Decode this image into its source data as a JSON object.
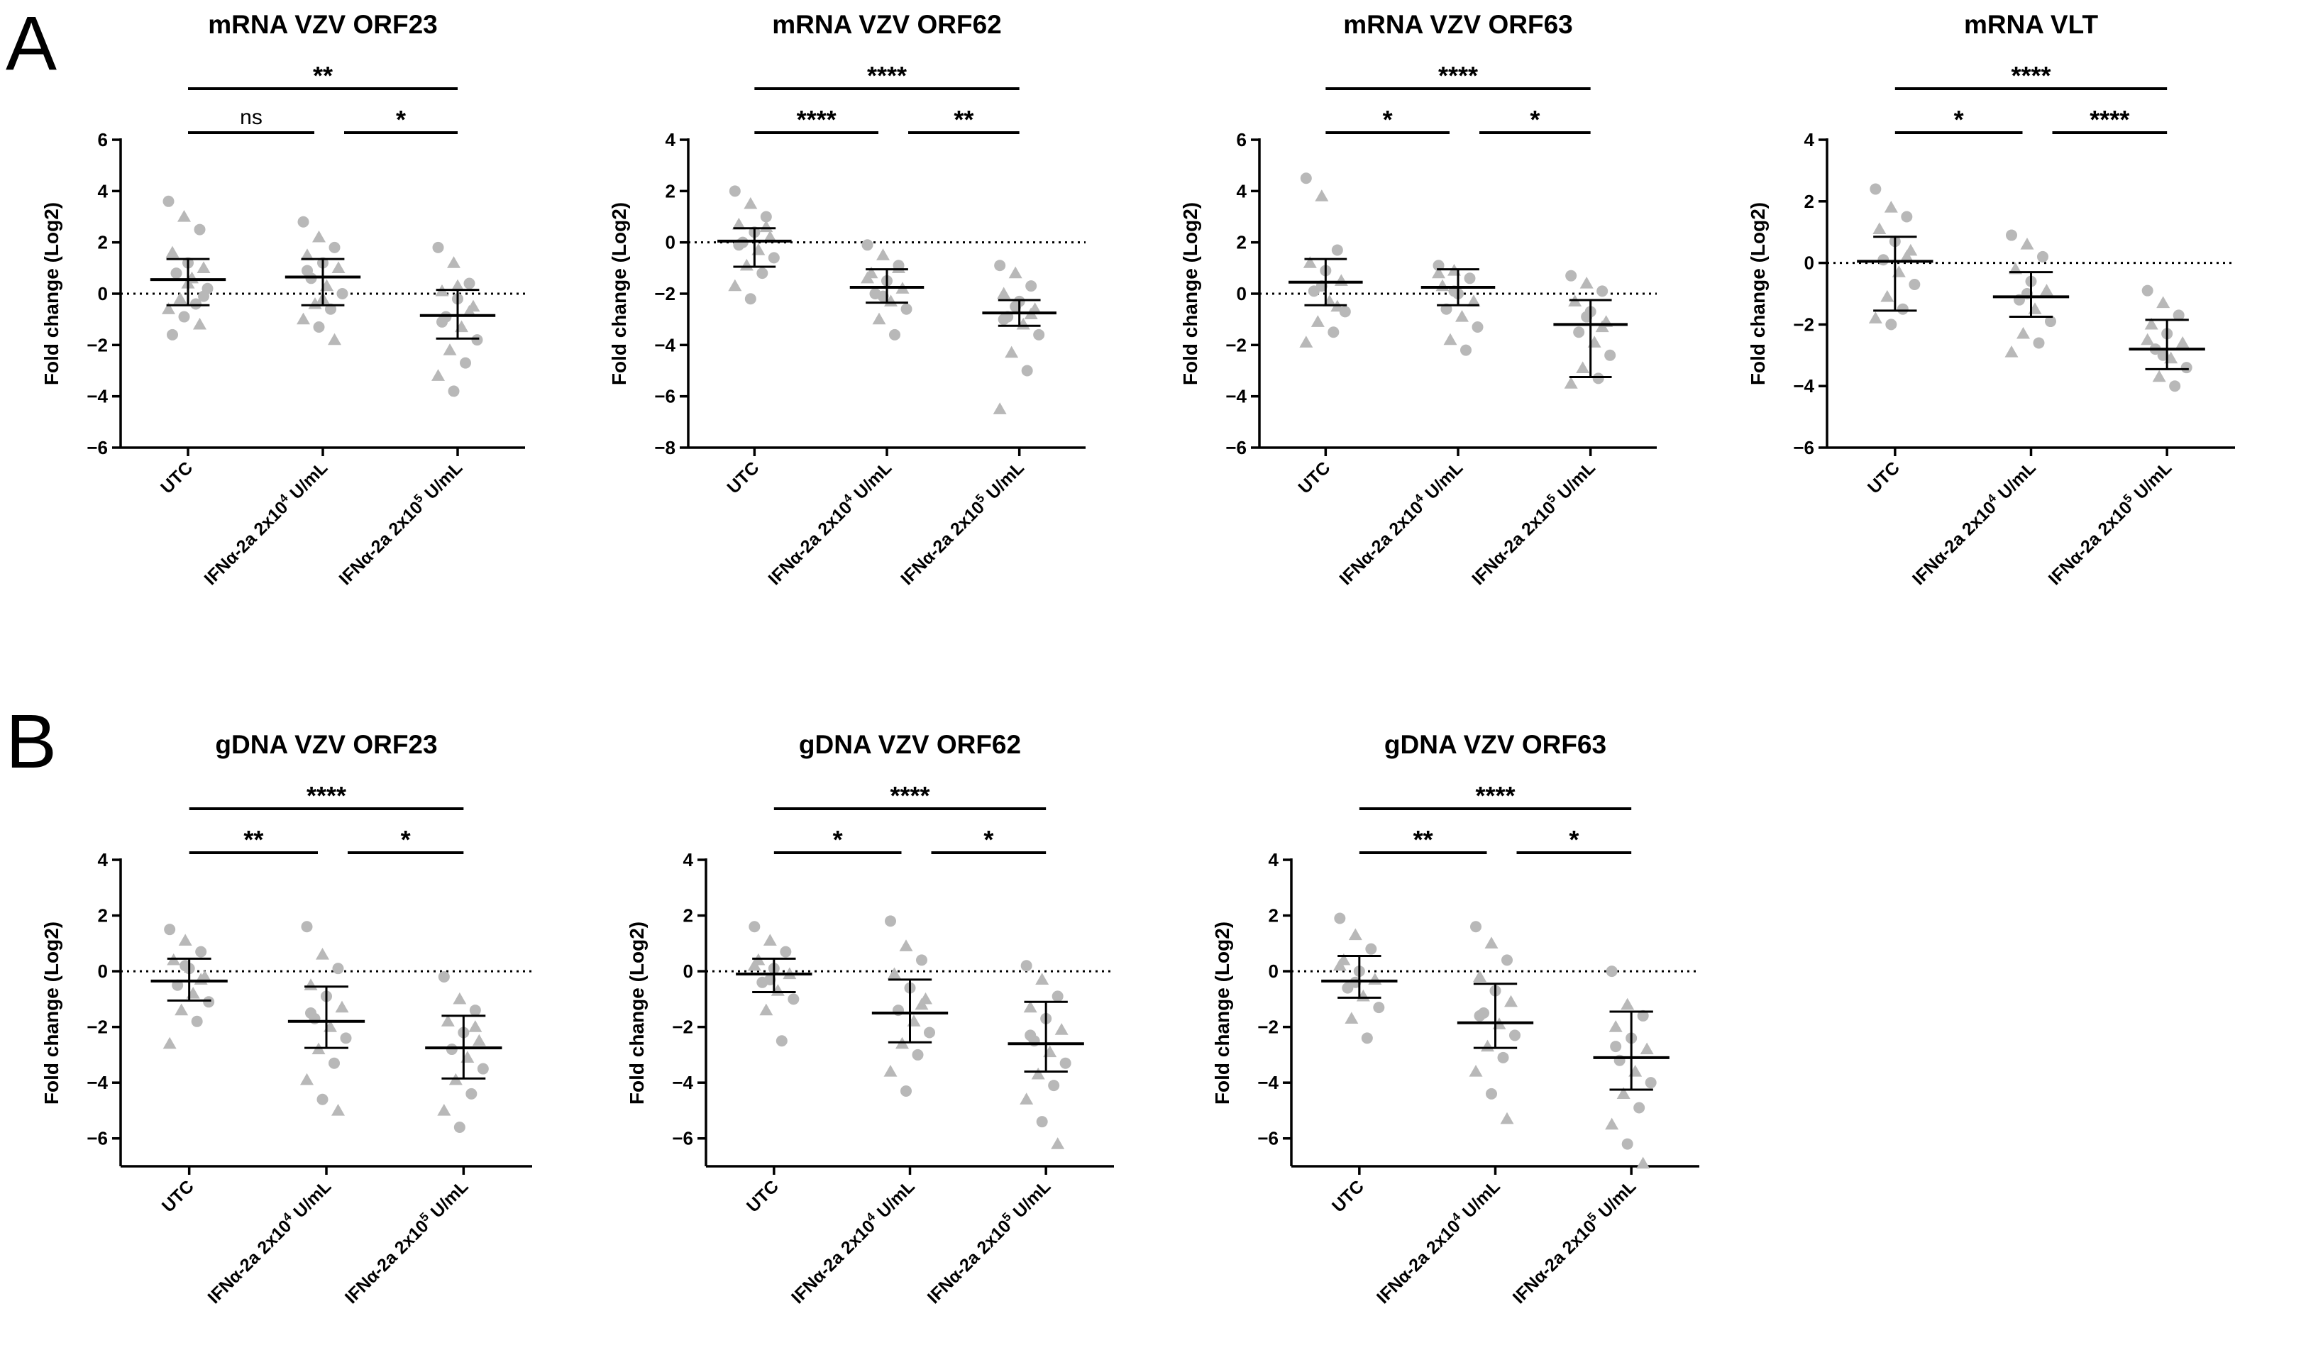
{
  "panels": [
    {
      "letter": "A"
    },
    {
      "letter": "B"
    }
  ],
  "category_parts": {
    "ifn_prefix": "IFNα-2a 2x10",
    "unit_suffix": " U/mL",
    "exp_low": "4",
    "exp_high": "5"
  },
  "chart_data": [
    {
      "type": "scatter",
      "title": "mRNA VZV ORF23",
      "ylabel": "Fold change (Log2)",
      "ylim": [
        -6,
        6
      ],
      "yticks": [
        -6,
        -4,
        -2,
        0,
        2,
        4,
        6
      ],
      "categories": [
        "UTC",
        "IFNα-2a 2x10^4 U/mL",
        "IFNα-2a 2x10^5 U/mL"
      ],
      "mean": [
        0.55,
        0.65,
        -0.85
      ],
      "sd_low": [
        -0.45,
        -0.45,
        -1.75
      ],
      "sd_high": [
        1.35,
        1.35,
        0.15
      ],
      "points": [
        [
          3.6,
          3.0,
          2.5,
          1.6,
          1.2,
          1.0,
          0.8,
          0.6,
          0.2,
          -0.2,
          -0.4,
          -0.6,
          -0.9,
          -1.2,
          -1.6,
          0.4,
          -0.1
        ],
        [
          2.8,
          2.2,
          1.8,
          1.5,
          1.2,
          1.0,
          0.6,
          0.3,
          0.0,
          -0.4,
          -0.6,
          -1.0,
          -1.3,
          -1.8,
          0.9,
          -0.2
        ],
        [
          1.8,
          1.2,
          0.4,
          0.1,
          -0.2,
          -0.5,
          -0.9,
          -1.3,
          -1.8,
          -2.2,
          -2.7,
          -3.2,
          -3.8,
          -0.7,
          -1.1,
          0.3
        ]
      ],
      "sig": [
        {
          "from": 0,
          "to": 2,
          "label": "**",
          "level": 2
        },
        {
          "from": 0,
          "to": 1,
          "label": "ns",
          "level": 1
        },
        {
          "from": 1,
          "to": 2,
          "label": "*",
          "level": 1
        }
      ]
    },
    {
      "type": "scatter",
      "title": "mRNA VZV ORF62",
      "ylabel": "Fold change (Log2)",
      "ylim": [
        -8,
        4
      ],
      "yticks": [
        -8,
        -6,
        -4,
        -2,
        0,
        2,
        4
      ],
      "categories": [
        "UTC",
        "IFNα-2a 2x10^4 U/mL",
        "IFNα-2a 2x10^5 U/mL"
      ],
      "mean": [
        0.05,
        -1.75,
        -2.75
      ],
      "sd_low": [
        -0.95,
        -2.35,
        -3.25
      ],
      "sd_high": [
        0.55,
        -1.05,
        -2.25
      ],
      "points": [
        [
          2.0,
          1.5,
          1.0,
          0.7,
          0.4,
          0.2,
          0.0,
          -0.3,
          -0.6,
          -0.9,
          -1.2,
          -1.7,
          -2.2,
          0.6,
          -0.1
        ],
        [
          -0.1,
          -0.5,
          -0.9,
          -1.2,
          -1.5,
          -1.8,
          -2.0,
          -2.3,
          -2.6,
          -3.0,
          -3.6,
          -1.4,
          -2.1,
          -1.0
        ],
        [
          -0.9,
          -1.2,
          -1.7,
          -2.0,
          -2.3,
          -2.6,
          -2.9,
          -3.2,
          -3.6,
          -4.3,
          -5.0,
          -6.5,
          -2.5,
          -2.8,
          -3.0
        ]
      ],
      "sig": [
        {
          "from": 0,
          "to": 2,
          "label": "****",
          "level": 2
        },
        {
          "from": 0,
          "to": 1,
          "label": "****",
          "level": 1
        },
        {
          "from": 1,
          "to": 2,
          "label": "**",
          "level": 1
        }
      ]
    },
    {
      "type": "scatter",
      "title": "mRNA VZV ORF63",
      "ylabel": "Fold change (Log2)",
      "ylim": [
        -6,
        6
      ],
      "yticks": [
        -6,
        -4,
        -2,
        0,
        2,
        4,
        6
      ],
      "categories": [
        "UTC",
        "IFNα-2a 2x10^4 U/mL",
        "IFNα-2a 2x10^5 U/mL"
      ],
      "mean": [
        0.45,
        0.25,
        -1.2
      ],
      "sd_low": [
        -0.45,
        -0.45,
        -3.25
      ],
      "sd_high": [
        1.35,
        0.95,
        -0.25
      ],
      "points": [
        [
          4.5,
          3.8,
          1.7,
          1.2,
          0.9,
          0.5,
          0.1,
          -0.3,
          -0.7,
          -1.1,
          -1.5,
          -1.9,
          0.3,
          -0.5
        ],
        [
          1.1,
          0.9,
          0.6,
          0.3,
          0.0,
          -0.3,
          -0.6,
          -0.9,
          -1.3,
          -1.8,
          -2.2,
          0.8,
          0.1
        ],
        [
          0.7,
          0.4,
          0.1,
          -0.3,
          -0.7,
          -1.1,
          -1.5,
          -1.9,
          -2.4,
          -2.9,
          -3.3,
          -3.5,
          -0.9,
          -1.3
        ]
      ],
      "sig": [
        {
          "from": 0,
          "to": 2,
          "label": "****",
          "level": 2
        },
        {
          "from": 0,
          "to": 1,
          "label": "*",
          "level": 1
        },
        {
          "from": 1,
          "to": 2,
          "label": "*",
          "level": 1
        }
      ]
    },
    {
      "type": "scatter",
      "title": "mRNA VLT",
      "ylabel": "Fold change (Log2)",
      "ylim": [
        -6,
        4
      ],
      "yticks": [
        -6,
        -4,
        -2,
        0,
        2,
        4
      ],
      "categories": [
        "UTC",
        "IFNα-2a 2x10^4 U/mL",
        "IFNα-2a 2x10^5 U/mL"
      ],
      "mean": [
        0.05,
        -1.1,
        -2.8
      ],
      "sd_low": [
        -1.55,
        -1.75,
        -3.45
      ],
      "sd_high": [
        0.85,
        -0.3,
        -1.85
      ],
      "points": [
        [
          2.4,
          1.8,
          1.5,
          1.1,
          0.7,
          0.4,
          0.1,
          -0.3,
          -0.7,
          -1.1,
          -1.5,
          -1.8,
          -2.0,
          0.2
        ],
        [
          0.9,
          0.6,
          0.2,
          -0.2,
          -0.6,
          -0.9,
          -1.2,
          -1.5,
          -1.9,
          -2.3,
          -2.6,
          -2.9,
          -1.0
        ],
        [
          -0.9,
          -1.3,
          -1.7,
          -2.0,
          -2.3,
          -2.6,
          -2.8,
          -3.1,
          -3.4,
          -3.7,
          -4.0,
          -2.5,
          -3.0
        ]
      ],
      "sig": [
        {
          "from": 0,
          "to": 2,
          "label": "****",
          "level": 2
        },
        {
          "from": 0,
          "to": 1,
          "label": "*",
          "level": 1
        },
        {
          "from": 1,
          "to": 2,
          "label": "****",
          "level": 1
        }
      ]
    },
    {
      "type": "scatter",
      "title": "gDNA VZV ORF23",
      "ylabel": "Fold change (Log2)",
      "ylim": [
        -7,
        4
      ],
      "yticks": [
        -6,
        -4,
        -2,
        0,
        2,
        4
      ],
      "categories": [
        "UTC",
        "IFNα-2a 2x10^4 U/mL",
        "IFNα-2a 2x10^5 U/mL"
      ],
      "mean": [
        -0.35,
        -1.8,
        -2.75
      ],
      "sd_low": [
        -1.05,
        -2.75,
        -3.85
      ],
      "sd_high": [
        0.45,
        -0.55,
        -1.6
      ],
      "points": [
        [
          1.5,
          1.1,
          0.7,
          0.4,
          0.1,
          -0.2,
          -0.5,
          -0.8,
          -1.1,
          -1.4,
          -1.8,
          -2.6,
          0.2,
          -0.3
        ],
        [
          1.6,
          0.6,
          0.1,
          -0.5,
          -0.9,
          -1.3,
          -1.7,
          -2.0,
          -2.4,
          -2.8,
          -3.3,
          -3.9,
          -4.6,
          -5.0,
          -1.5
        ],
        [
          -0.2,
          -1.0,
          -1.4,
          -1.8,
          -2.2,
          -2.5,
          -2.8,
          -3.1,
          -3.5,
          -3.9,
          -4.4,
          -5.0,
          -5.6,
          -2.0
        ]
      ],
      "sig": [
        {
          "from": 0,
          "to": 2,
          "label": "****",
          "level": 2
        },
        {
          "from": 0,
          "to": 1,
          "label": "**",
          "level": 1
        },
        {
          "from": 1,
          "to": 2,
          "label": "*",
          "level": 1
        }
      ]
    },
    {
      "type": "scatter",
      "title": "gDNA VZV ORF62",
      "ylabel": "Fold change (Log2)",
      "ylim": [
        -7,
        4
      ],
      "yticks": [
        -6,
        -4,
        -2,
        0,
        2,
        4
      ],
      "categories": [
        "UTC",
        "IFNα-2a 2x10^4 U/mL",
        "IFNα-2a 2x10^5 U/mL"
      ],
      "mean": [
        -0.1,
        -1.5,
        -2.6
      ],
      "sd_low": [
        -0.75,
        -2.55,
        -3.6
      ],
      "sd_high": [
        0.45,
        -0.3,
        -1.1
      ],
      "points": [
        [
          1.6,
          1.1,
          0.7,
          0.4,
          0.1,
          -0.1,
          -0.4,
          -0.7,
          -1.0,
          -1.4,
          -2.5,
          0.2,
          -0.3
        ],
        [
          1.8,
          0.9,
          0.4,
          -0.1,
          -0.6,
          -1.0,
          -1.4,
          -1.8,
          -2.2,
          -2.6,
          -3.0,
          -3.6,
          -4.3,
          -1.2
        ],
        [
          0.2,
          -0.3,
          -0.9,
          -1.3,
          -1.7,
          -2.1,
          -2.5,
          -2.9,
          -3.3,
          -3.7,
          -4.1,
          -4.6,
          -5.4,
          -6.2,
          -2.3
        ]
      ],
      "sig": [
        {
          "from": 0,
          "to": 2,
          "label": "****",
          "level": 2
        },
        {
          "from": 0,
          "to": 1,
          "label": "*",
          "level": 1
        },
        {
          "from": 1,
          "to": 2,
          "label": "*",
          "level": 1
        }
      ]
    },
    {
      "type": "scatter",
      "title": "gDNA VZV ORF63",
      "ylabel": "Fold change (Log2)",
      "ylim": [
        -7,
        4
      ],
      "yticks": [
        -6,
        -4,
        -2,
        0,
        2,
        4
      ],
      "categories": [
        "UTC",
        "IFNα-2a 2x10^4 U/mL",
        "IFNα-2a 2x10^5 U/mL"
      ],
      "mean": [
        -0.35,
        -1.85,
        -3.1
      ],
      "sd_low": [
        -0.95,
        -2.75,
        -4.25
      ],
      "sd_high": [
        0.55,
        -0.45,
        -1.45
      ],
      "points": [
        [
          1.9,
          1.3,
          0.8,
          0.4,
          0.0,
          -0.3,
          -0.6,
          -0.9,
          -1.3,
          -1.7,
          -2.4,
          0.2,
          -0.4
        ],
        [
          1.6,
          1.0,
          0.4,
          -0.2,
          -0.7,
          -1.1,
          -1.5,
          -1.9,
          -2.3,
          -2.7,
          -3.1,
          -3.6,
          -4.4,
          -5.3,
          -1.6
        ],
        [
          0.0,
          -1.2,
          -1.6,
          -2.0,
          -2.4,
          -2.8,
          -3.2,
          -3.6,
          -4.0,
          -4.4,
          -4.9,
          -5.5,
          -6.2,
          -6.9,
          -2.7
        ]
      ],
      "sig": [
        {
          "from": 0,
          "to": 2,
          "label": "****",
          "level": 2
        },
        {
          "from": 0,
          "to": 1,
          "label": "**",
          "level": 1
        },
        {
          "from": 1,
          "to": 2,
          "label": "*",
          "level": 1
        }
      ]
    }
  ]
}
